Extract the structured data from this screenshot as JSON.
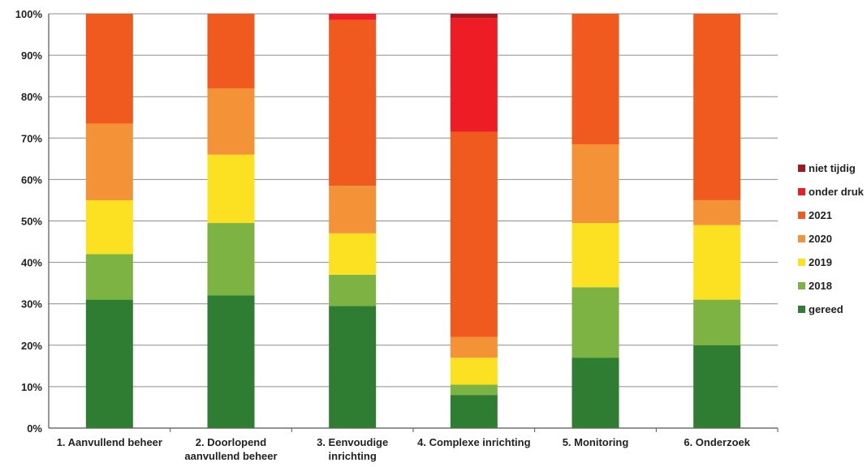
{
  "chart_data": {
    "type": "bar",
    "stacked": true,
    "percent": true,
    "categories": [
      [
        "1. Aanvullend beheer"
      ],
      [
        "2. Doorlopend",
        "aanvullend beheer"
      ],
      [
        "3. Eenvoudige",
        "inrichting"
      ],
      [
        "4. Complexe inrichting"
      ],
      [
        "5. Monitoring"
      ],
      [
        "6. Onderzoek"
      ]
    ],
    "series": [
      {
        "name": "gereed",
        "color": "#2e7d32",
        "values": [
          31,
          32,
          29.5,
          8,
          17,
          20
        ]
      },
      {
        "name": "2018",
        "color": "#7cb342",
        "values": [
          11,
          17.5,
          7.5,
          2.5,
          17,
          11
        ]
      },
      {
        "name": "2019",
        "color": "#fbe122",
        "values": [
          13,
          16.5,
          10,
          6.5,
          15.5,
          18
        ]
      },
      {
        "name": "2020",
        "color": "#f39237",
        "values": [
          18.5,
          16,
          11.5,
          5,
          19,
          6
        ]
      },
      {
        "name": "2021",
        "color": "#f05a1e",
        "values": [
          26.5,
          18,
          40,
          49.5,
          31.5,
          45
        ]
      },
      {
        "name": "onder druk",
        "color": "#ee1c25",
        "values": [
          0,
          0,
          1.5,
          27.5,
          0,
          0
        ]
      },
      {
        "name": "niet tijdig",
        "color": "#a3171e",
        "values": [
          0,
          0,
          0,
          1,
          0,
          0
        ]
      }
    ],
    "ylim": [
      0,
      100
    ],
    "yticks": [
      "0%",
      "10%",
      "20%",
      "30%",
      "40%",
      "50%",
      "60%",
      "70%",
      "80%",
      "90%",
      "100%"
    ],
    "grid": true,
    "legend_position": "right",
    "legend_order": [
      "niet tijdig",
      "onder druk",
      "2021",
      "2020",
      "2019",
      "2018",
      "gereed"
    ],
    "xlabel": "",
    "ylabel": "",
    "title": ""
  }
}
